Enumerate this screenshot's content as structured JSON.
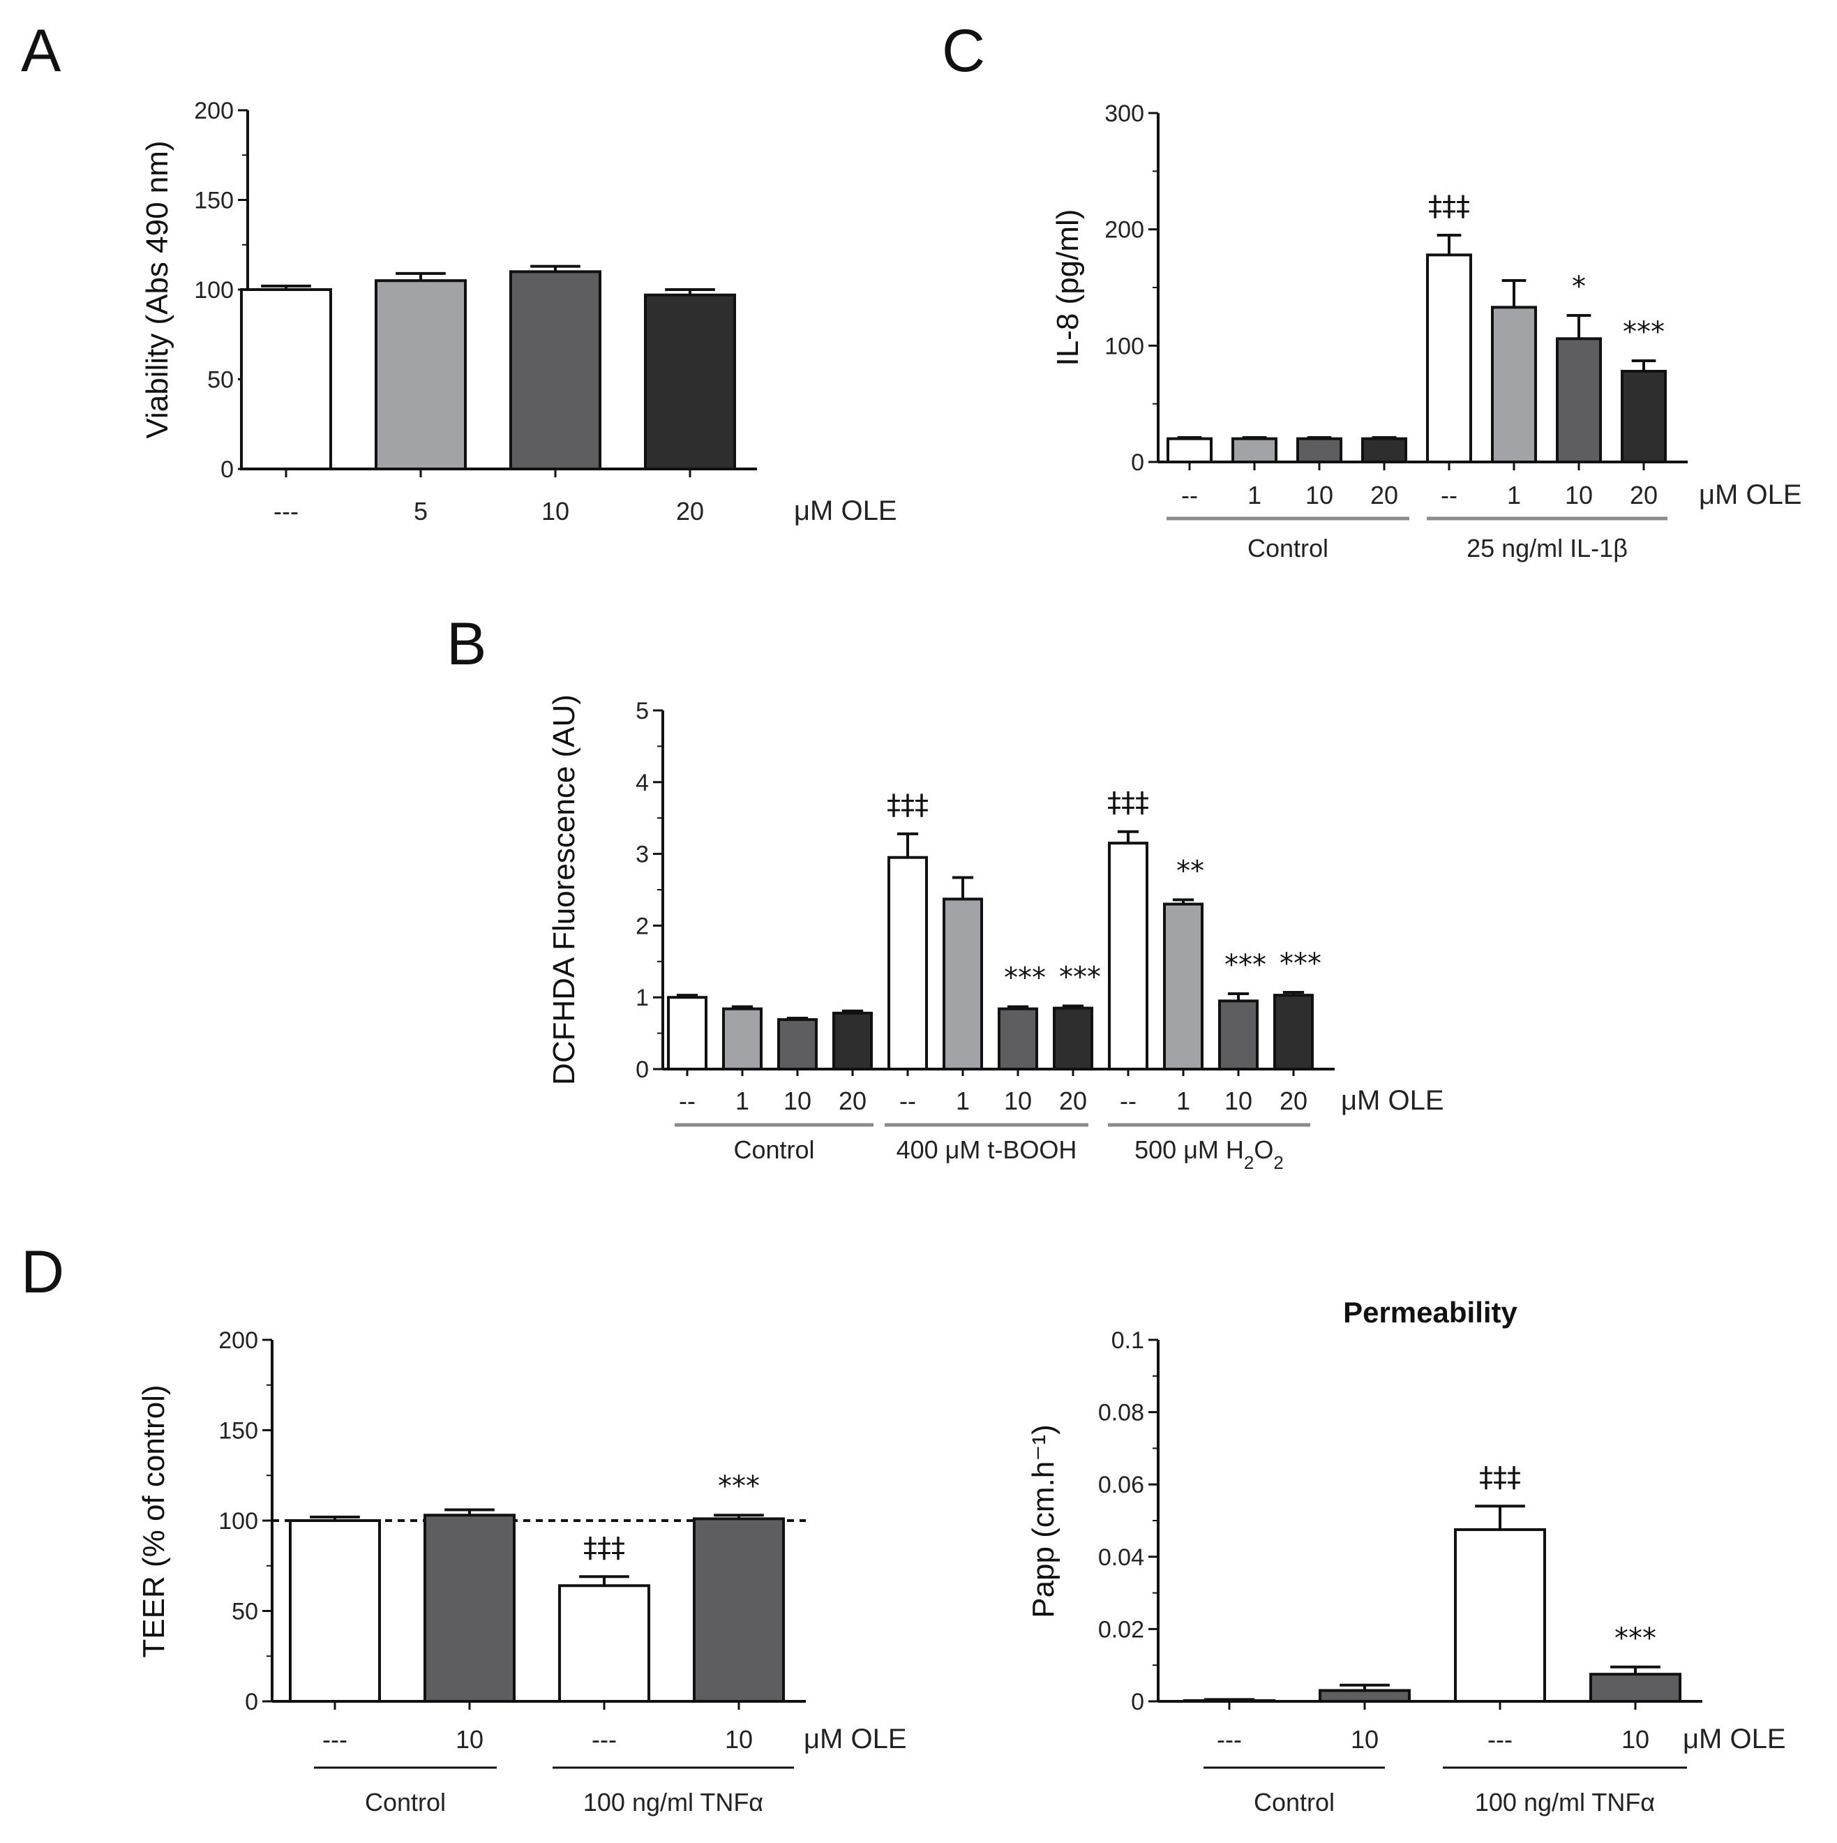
{
  "colors": {
    "white": "#ffffff",
    "light": "#a2a3a7",
    "mid": "#5e5e60",
    "dark": "#2e2e2f",
    "axis": "#111111",
    "groupline": "#8a8a8a"
  },
  "chart_data": [
    {
      "panel": "A",
      "type": "bar",
      "title": "",
      "ylabel": "Viability (Abs 490 nm)",
      "ylim": [
        0,
        200
      ],
      "yticks": [
        "0",
        "50",
        "100",
        "150",
        "200"
      ],
      "unit": "μM OLE",
      "categories": [
        "---",
        "5",
        "10",
        "20"
      ],
      "values": [
        100,
        105,
        110,
        97
      ],
      "errors": [
        2,
        4,
        3,
        3
      ],
      "fills": [
        "white",
        "light",
        "mid",
        "dark"
      ],
      "significance": [
        "",
        "",
        "",
        ""
      ],
      "groups": []
    },
    {
      "panel": "C",
      "type": "bar",
      "title": "",
      "ylabel": "IL-8 (pg/ml)",
      "ylim": [
        0,
        300
      ],
      "yticks": [
        "0",
        "100",
        "200",
        "300"
      ],
      "unit": "μM OLE",
      "categories": [
        "--",
        "1",
        "10",
        "20",
        "--",
        "1",
        "10",
        "20"
      ],
      "values": [
        20,
        20,
        20,
        20,
        178,
        133,
        106,
        78
      ],
      "errors": [
        1,
        1,
        1,
        1,
        17,
        23,
        20,
        9
      ],
      "fills": [
        "white",
        "light",
        "mid",
        "dark",
        "white",
        "light",
        "mid",
        "dark"
      ],
      "significance": [
        "",
        "",
        "",
        "",
        "‡‡‡",
        "",
        "*",
        "***"
      ],
      "groups": [
        {
          "label": "Control"
        },
        {
          "label": "25 ng/ml IL-1β"
        }
      ]
    },
    {
      "panel": "B",
      "type": "bar",
      "title": "",
      "ylabel": "DCFHDA Fluorescence (AU)",
      "ylim": [
        0,
        5
      ],
      "yticks": [
        "0",
        "1",
        "2",
        "3",
        "4",
        "5"
      ],
      "unit": "μM OLE",
      "categories": [
        "--",
        "1",
        "10",
        "20",
        "--",
        "1",
        "10",
        "20",
        "--",
        "1",
        "10",
        "20"
      ],
      "values": [
        1.0,
        0.84,
        0.69,
        0.78,
        2.95,
        2.37,
        0.84,
        0.85,
        3.15,
        2.3,
        0.95,
        1.03
      ],
      "errors": [
        0.03,
        0.03,
        0.02,
        0.03,
        0.33,
        0.3,
        0.03,
        0.03,
        0.16,
        0.06,
        0.1,
        0.04
      ],
      "fills": [
        "white",
        "light",
        "mid",
        "dark",
        "white",
        "light",
        "mid",
        "dark",
        "white",
        "light",
        "mid",
        "dark"
      ],
      "significance": [
        "",
        "",
        "",
        "",
        "‡‡‡",
        "",
        "***",
        "***",
        "‡‡‡",
        "**",
        "***",
        "***"
      ],
      "groups": [
        {
          "label": "Control"
        },
        {
          "label": "400 μM t-BOOH"
        },
        {
          "label": "500 μM H",
          "sub1": "2",
          "mid": "O",
          "sub2": "2"
        }
      ]
    },
    {
      "panel": "D",
      "type": "bar",
      "title": "",
      "ylabel": "TEER (% of control)",
      "ylim": [
        0,
        200
      ],
      "yticks": [
        "0",
        "50",
        "100",
        "150",
        "200"
      ],
      "unit": "μM OLE",
      "reference_line": 100,
      "categories": [
        "---",
        "10",
        "---",
        "10"
      ],
      "values": [
        100,
        103,
        64,
        101
      ],
      "errors": [
        2,
        3,
        5,
        2
      ],
      "fills": [
        "white",
        "mid",
        "white",
        "mid"
      ],
      "significance": [
        "",
        "",
        "‡‡‡",
        "***"
      ],
      "groups": [
        {
          "label": "Control"
        },
        {
          "label": "100 ng/ml TNFα"
        }
      ]
    },
    {
      "panel": "D2",
      "type": "bar",
      "title": "Permeability",
      "ylabel": "Papp (cm.h⁻¹)",
      "ylim": [
        0,
        0.1
      ],
      "yticks": [
        "0",
        "0.02",
        "0.04",
        "0.06",
        "0.08",
        "0.1"
      ],
      "unit": "μM OLE",
      "categories": [
        "---",
        "10",
        "---",
        "10"
      ],
      "values": [
        0.0002,
        0.003,
        0.0475,
        0.0075
      ],
      "errors": [
        0.0003,
        0.0015,
        0.0065,
        0.002
      ],
      "fills": [
        "white",
        "mid",
        "white",
        "mid"
      ],
      "significance": [
        "",
        "",
        "‡‡‡",
        "***"
      ],
      "groups": [
        {
          "label": "Control"
        },
        {
          "label": "100 ng/ml TNFα"
        }
      ]
    }
  ],
  "panel_letters": {
    "A": "A",
    "B": "B",
    "C": "C",
    "D": "D"
  }
}
